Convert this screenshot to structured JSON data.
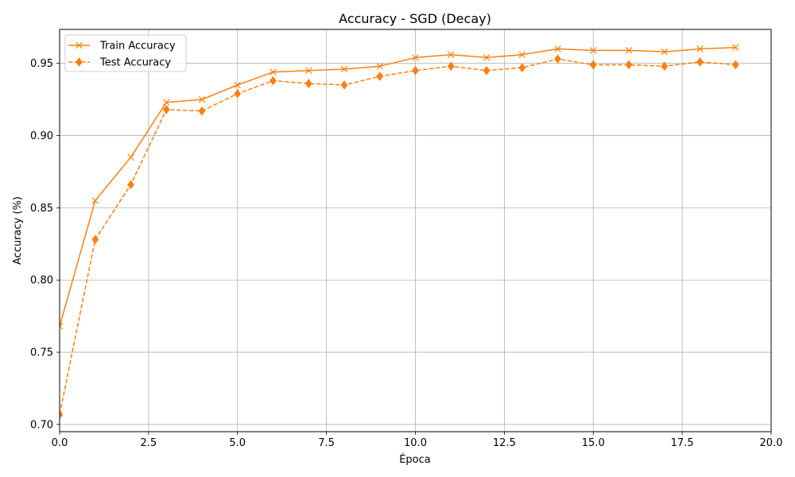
{
  "chart_data": {
    "type": "line",
    "title": "Accuracy - SGD (Decay)",
    "xlabel": "Época",
    "ylabel": "Accuracy (%)",
    "xlim": [
      0,
      20
    ],
    "ylim": [
      0.695,
      0.9735
    ],
    "xticks": [
      0,
      2.5,
      5,
      7.5,
      10,
      12.5,
      15,
      17.5,
      20
    ],
    "xtick_labels": [
      "0.0",
      "2.5",
      "5.0",
      "7.5",
      "10.0",
      "12.5",
      "15.0",
      "17.5",
      "20.0"
    ],
    "yticks": [
      0.7,
      0.75,
      0.8,
      0.85,
      0.9,
      0.95
    ],
    "ytick_labels": [
      "0.70",
      "0.75",
      "0.80",
      "0.85",
      "0.90",
      "0.95"
    ],
    "grid": true,
    "legend_position": "top-left",
    "x": [
      0,
      1,
      2,
      3,
      4,
      5,
      6,
      7,
      8,
      9,
      10,
      11,
      12,
      13,
      14,
      15,
      16,
      17,
      18,
      19
    ],
    "series": [
      {
        "name": "Train Accuracy",
        "color": "#ff7f0e",
        "line_style": "solid",
        "marker": "x",
        "values": [
          0.768,
          0.855,
          0.885,
          0.923,
          0.925,
          0.935,
          0.944,
          0.945,
          0.946,
          0.948,
          0.954,
          0.956,
          0.954,
          0.956,
          0.96,
          0.959,
          0.959,
          0.958,
          0.96,
          0.961
        ]
      },
      {
        "name": "Test Accuracy",
        "color": "#ff7f0e",
        "line_style": "dashed",
        "marker": "diamond",
        "values": [
          0.707,
          0.828,
          0.866,
          0.918,
          0.917,
          0.929,
          0.938,
          0.936,
          0.935,
          0.941,
          0.945,
          0.948,
          0.945,
          0.947,
          0.953,
          0.949,
          0.949,
          0.948,
          0.951,
          0.949
        ]
      }
    ]
  }
}
